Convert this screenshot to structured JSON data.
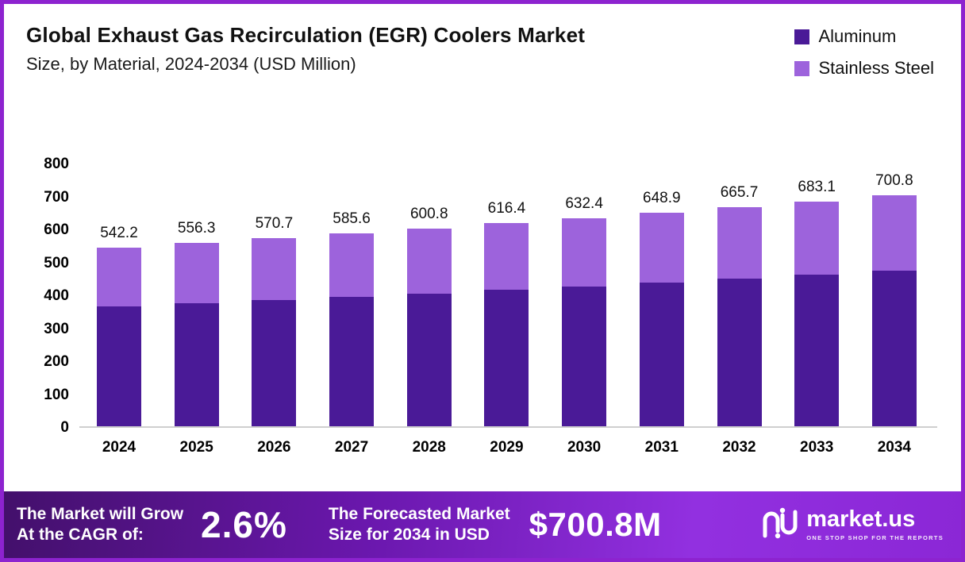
{
  "page": {
    "border_color": "#8d23cf",
    "background": "#ffffff"
  },
  "header": {
    "title": "Global Exhaust Gas Recirculation (EGR) Coolers Market",
    "subtitle": "Size, by Material, 2024-2034 (USD Million)"
  },
  "chart_data": {
    "type": "bar",
    "stacked": true,
    "title": "Global Exhaust Gas Recirculation (EGR) Coolers Market Size, by Material, 2024-2034 (USD Million)",
    "categories": [
      "2024",
      "2025",
      "2026",
      "2027",
      "2028",
      "2029",
      "2030",
      "2031",
      "2032",
      "2033",
      "2034"
    ],
    "series": [
      {
        "name": "Aluminum",
        "color": "#4a1a97",
        "values": [
          365,
          374,
          384,
          393,
          403,
          414,
          425,
          437,
          448,
          460,
          472
        ]
      },
      {
        "name": "Stainless Steel",
        "color": "#9d63dc",
        "values": [
          177.2,
          182.3,
          186.7,
          192.6,
          197.8,
          202.4,
          207.4,
          211.9,
          217.7,
          223.1,
          228.8
        ]
      }
    ],
    "totals": [
      542.2,
      556.3,
      570.7,
      585.6,
      600.8,
      616.4,
      632.4,
      648.9,
      665.7,
      683.1,
      700.8
    ],
    "ylabel": "",
    "xlabel": "",
    "ylim": [
      0,
      800
    ],
    "ytick_step": 100,
    "grid": false,
    "legend_position": "top-right"
  },
  "banner": {
    "left_line1": "The Market will Grow",
    "left_line2": "At the CAGR of:",
    "cagr": "2.6%",
    "mid_line1": "The Forecasted Market",
    "mid_line2": "Size for 2034 in USD",
    "forecast_value": "$700.8M",
    "brand": "market.us",
    "brand_tagline": "ONE STOP SHOP FOR THE REPORTS"
  }
}
